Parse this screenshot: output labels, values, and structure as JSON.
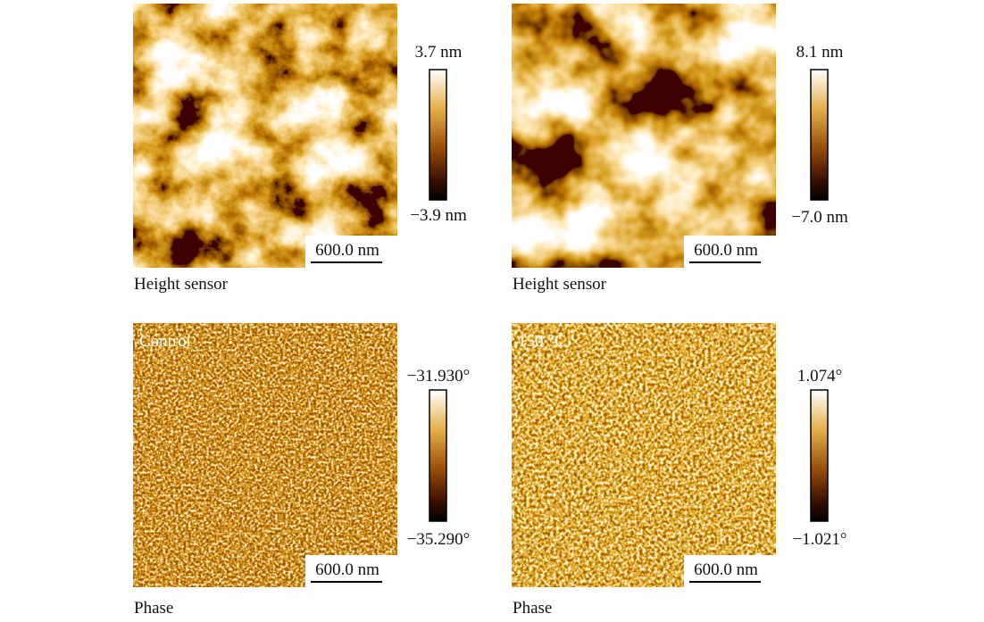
{
  "panels": [
    {
      "colorbar_max": "3.7 nm",
      "colorbar_min": "−3.9 nm",
      "scale_bar": "600.0 nm",
      "caption": "Height sensor"
    },
    {
      "colorbar_max": "8.1 nm",
      "colorbar_min": "−7.0 nm",
      "scale_bar": "600.0 nm",
      "caption": "Height sensor"
    },
    {
      "label": "Control",
      "colorbar_max": "−31.930°",
      "colorbar_min": "−35.290°",
      "scale_bar": "600.0 nm",
      "caption": "Phase"
    },
    {
      "label": "150 °C",
      "colorbar_max": "1.074°",
      "colorbar_min": "−1.021°",
      "scale_bar": "600.0 nm",
      "caption": "Phase"
    }
  ]
}
